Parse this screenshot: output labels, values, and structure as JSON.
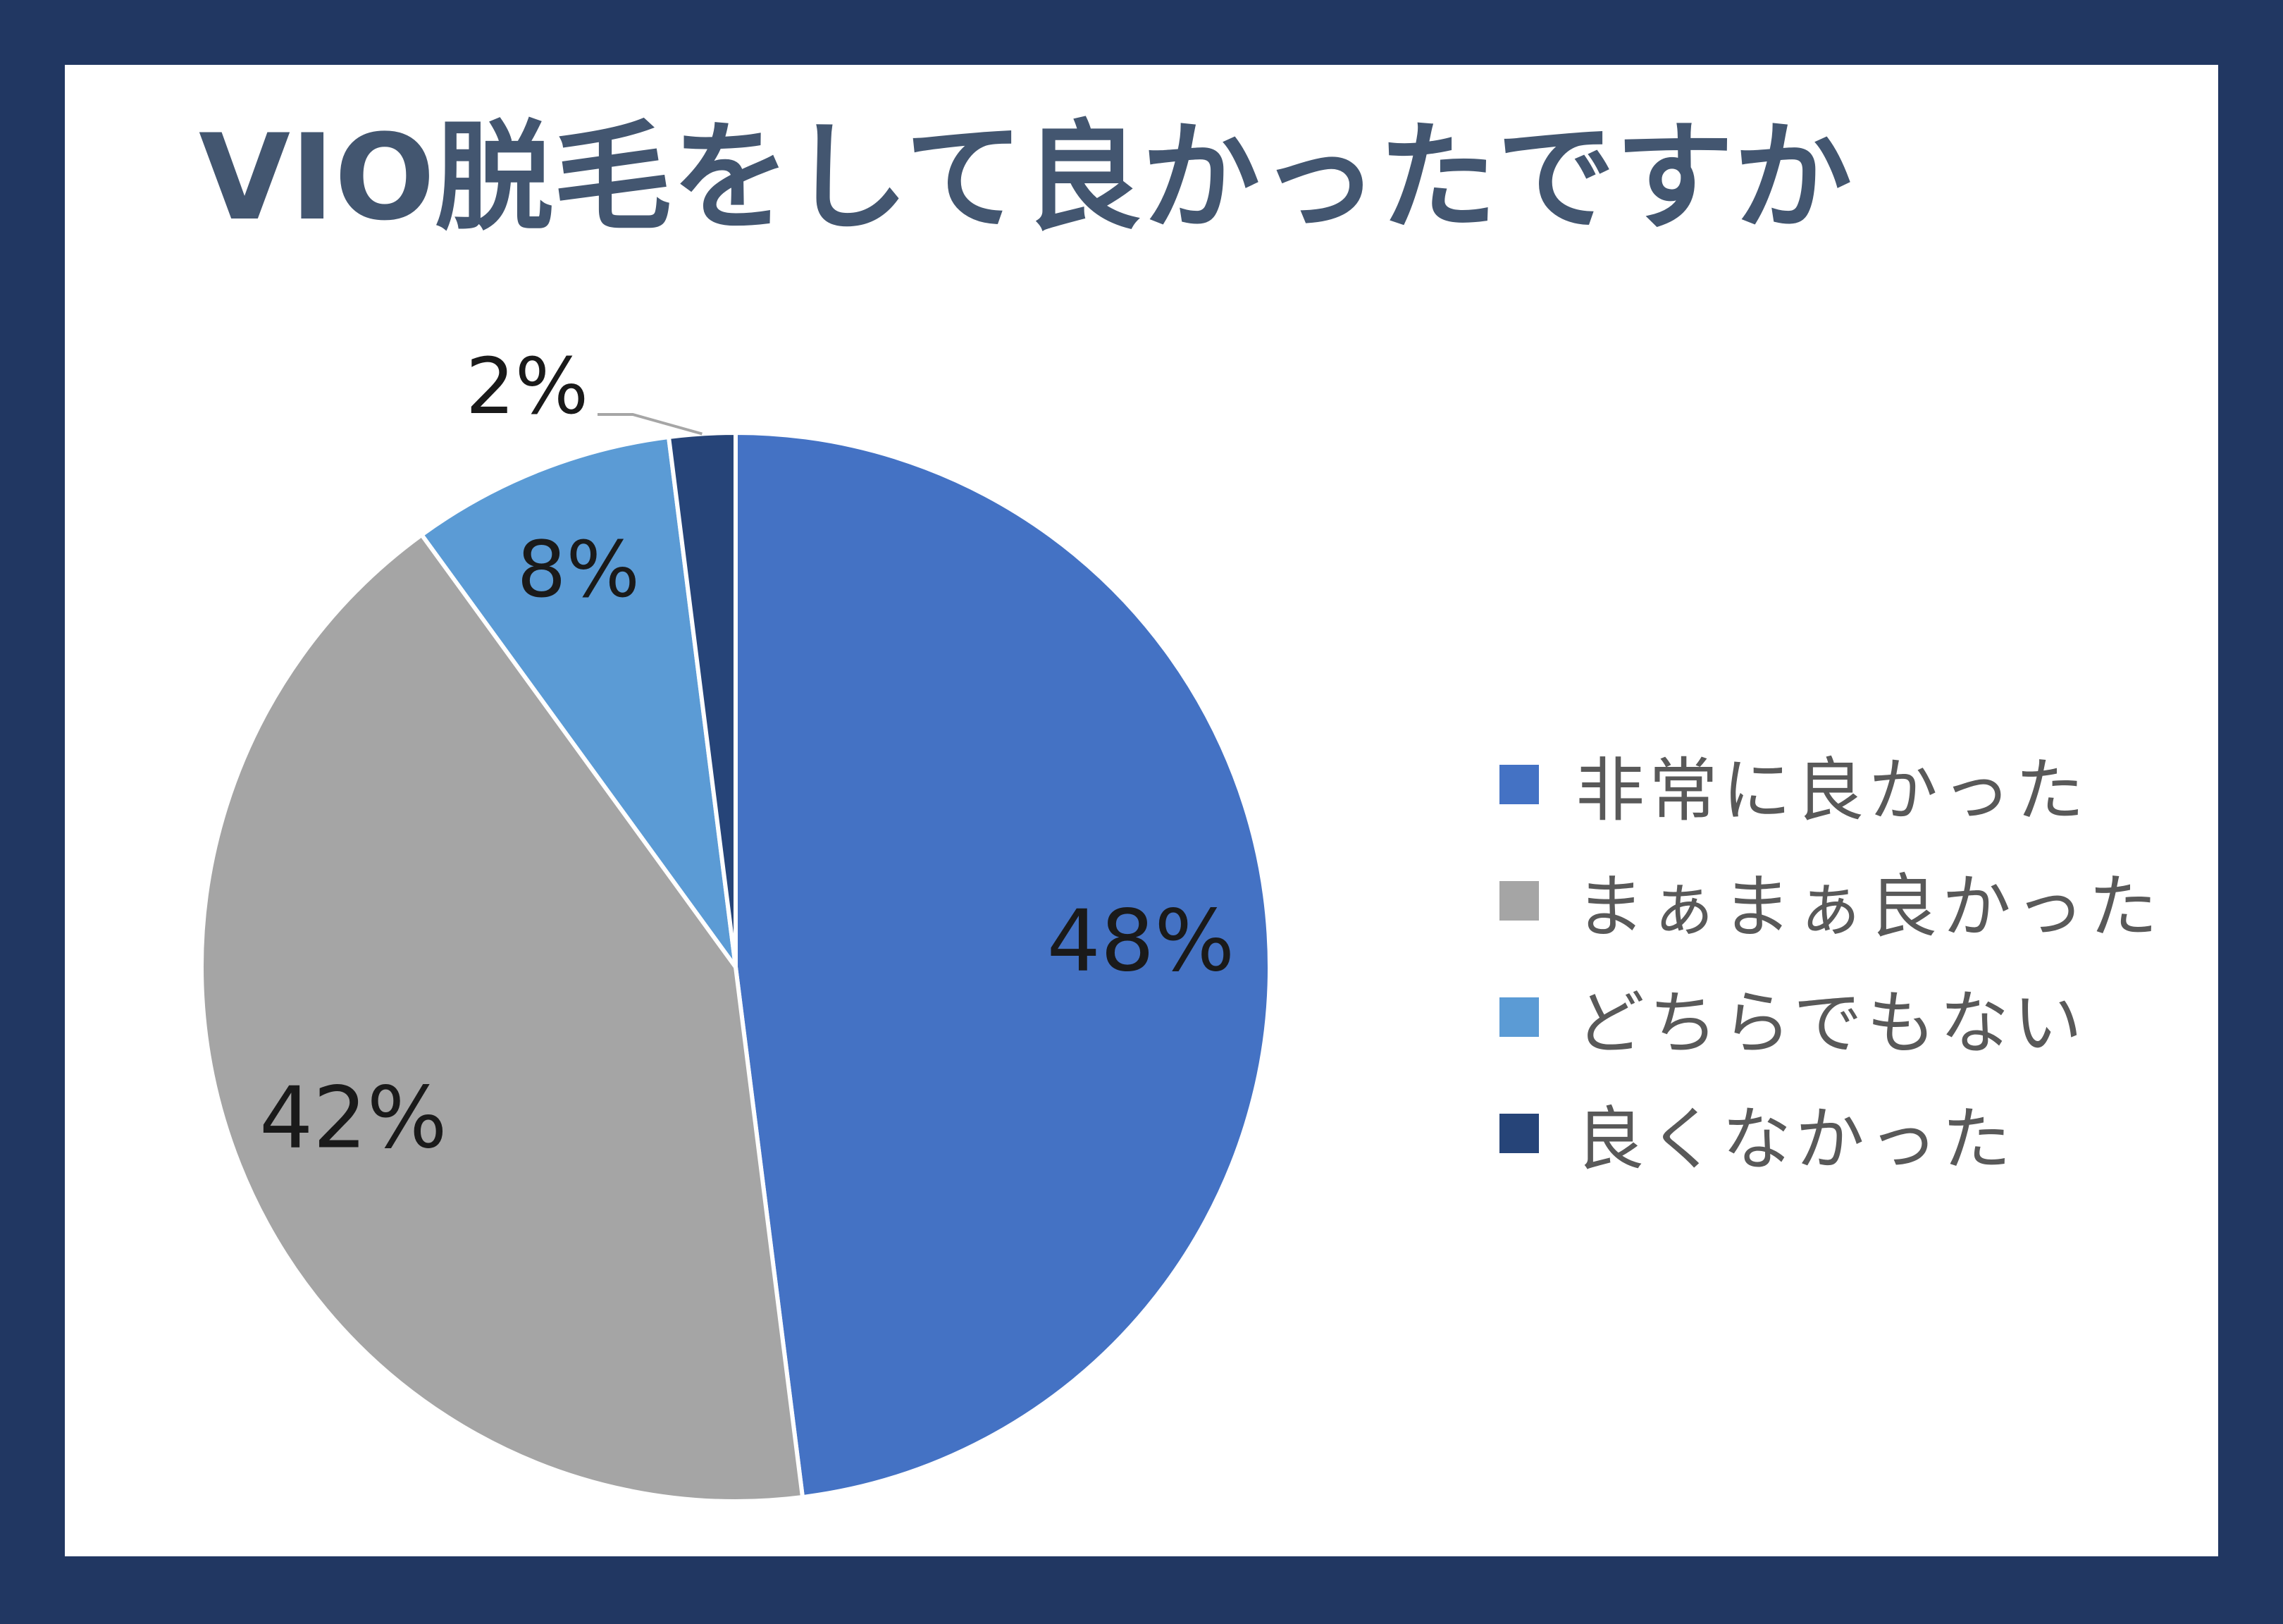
{
  "chart_data": {
    "type": "pie",
    "title": "VIO脱毛をして良かったですか",
    "categories": [
      "非常に良かった",
      "まぁまぁ良かった",
      "どちらでもない",
      "良くなかった"
    ],
    "values": [
      48,
      42,
      8,
      2
    ],
    "data_labels": [
      "48%",
      "42%",
      "8%",
      "2%"
    ],
    "colors": [
      "#4472c4",
      "#a5a5a5",
      "#5b9bd5",
      "#264478"
    ],
    "start_angle": "12 o'clock",
    "direction": "clockwise",
    "legend_position": "right"
  }
}
